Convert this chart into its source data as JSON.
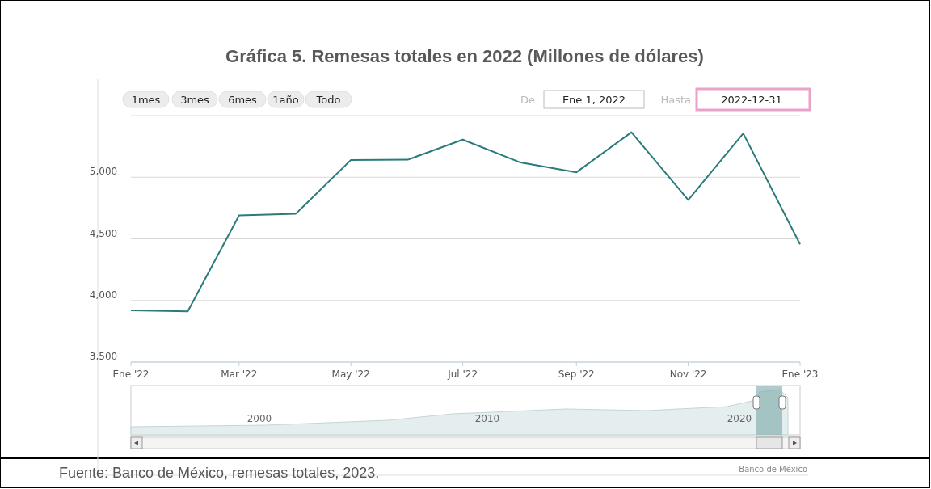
{
  "chart_data": {
    "type": "line",
    "title": "Gráfica 5. Remesas totales en 2022 (Millones de dólares)",
    "x": [
      "2022-01",
      "2022-02",
      "2022-03",
      "2022-04",
      "2022-05",
      "2022-06",
      "2022-07",
      "2022-08",
      "2022-09",
      "2022-10",
      "2022-11",
      "2022-12",
      "2023-01"
    ],
    "series": [
      {
        "color": "#2a7b7b",
        "values": [
          3920,
          3912,
          4690,
          4704,
          5140,
          5142,
          5305,
          5122,
          5040,
          5365,
          4816,
          5355,
          4456
        ]
      }
    ],
    "xlim": [
      "2022-01",
      "2023-01"
    ],
    "xticks": [
      {
        "value": "2022-01",
        "label": "Ene '22"
      },
      {
        "value": "2022-03",
        "label": "Mar '22"
      },
      {
        "value": "2022-05",
        "label": "May '22"
      },
      {
        "value": "2022-07",
        "label": "Jul '22"
      },
      {
        "value": "2022-09",
        "label": "Sep '22"
      },
      {
        "value": "2022-11",
        "label": "Nov '22"
      },
      {
        "value": "2023-01",
        "label": "Ene '23"
      }
    ],
    "ylim": [
      3500,
      5500
    ],
    "yticks": [
      {
        "value": 3500,
        "label": "3,500"
      },
      {
        "value": 4000,
        "label": "4,000"
      },
      {
        "value": 4500,
        "label": "4,500"
      },
      {
        "value": 5000,
        "label": "5,000"
      },
      {
        "value": 5500,
        "label": null
      }
    ],
    "grid": "y",
    "marker": "none",
    "line_style": "solid",
    "annotations": [
      "1mes",
      "3mes",
      "6mes",
      "1año",
      "Todo",
      "De",
      "Ene 1, 2022",
      "Hasta",
      "2022-12-31",
      "2000",
      "2010",
      "2020",
      "Banco de México",
      "Fuente: Banco de México, remesas totales, 2023."
    ]
  }
}
